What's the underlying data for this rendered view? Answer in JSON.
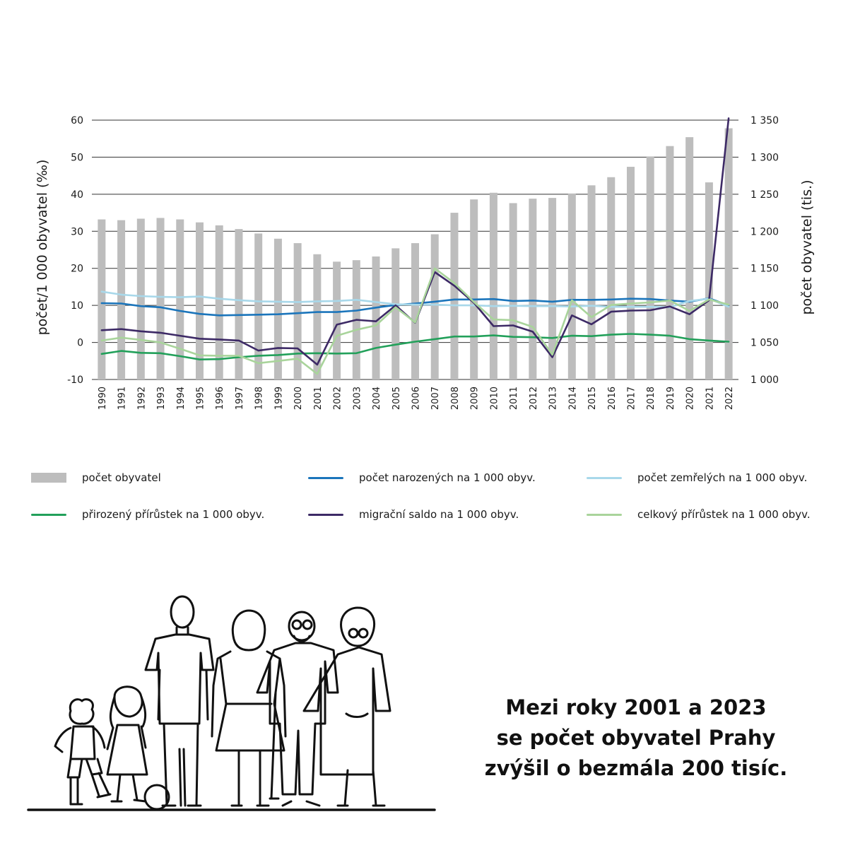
{
  "chart_data": {
    "type": "bar",
    "categories": [
      "1990",
      "1991",
      "1992",
      "1993",
      "1994",
      "1995",
      "1996",
      "1997",
      "1998",
      "1999",
      "2000",
      "2001",
      "2002",
      "2003",
      "2004",
      "2005",
      "2006",
      "2007",
      "2008",
      "2009",
      "2010",
      "2011",
      "2012",
      "2013",
      "2014",
      "2015",
      "2016",
      "2017",
      "2018",
      "2019",
      "2020",
      "2021",
      "2022"
    ],
    "y_left": {
      "label": "počet/1 000 obyvatel (‰)",
      "ticks": [
        60,
        50,
        40,
        30,
        20,
        10,
        0,
        -10
      ],
      "range": [
        -10,
        60
      ]
    },
    "y_right": {
      "label": "počet obyvatel (tis.)",
      "ticks": [
        "1 350",
        "1 300",
        "1 250",
        "1 200",
        "1 150",
        "1 100",
        "1 050",
        "1 000"
      ],
      "range": [
        1000,
        1350
      ]
    },
    "grid": "horizontal",
    "legend_position": "bottom",
    "series": [
      {
        "name": "počet obyvatel",
        "type": "bar",
        "axis": "right",
        "color": "#bdbdbd",
        "values": [
          1216,
          1215,
          1217,
          1218,
          1216,
          1212,
          1208,
          1203,
          1197,
          1190,
          1184,
          1169,
          1159,
          1161,
          1166,
          1177,
          1184,
          1196,
          1225,
          1243,
          1252,
          1238,
          1244,
          1245,
          1251,
          1262,
          1273,
          1287,
          1301,
          1315,
          1327,
          1266,
          1339
        ]
      },
      {
        "name": "počet narozených na 1 000 obyv.",
        "type": "line",
        "axis": "left",
        "color": "#1b75bb",
        "values": [
          10.6,
          10.5,
          9.8,
          9.5,
          8.5,
          7.7,
          7.3,
          7.4,
          7.5,
          7.6,
          7.9,
          8.2,
          8.2,
          8.6,
          9.4,
          10.1,
          10.5,
          11.0,
          11.6,
          11.6,
          11.7,
          11.2,
          11.3,
          11.0,
          11.5,
          11.5,
          11.6,
          11.8,
          11.7,
          11.3,
          11.0,
          11.9,
          10.0
        ]
      },
      {
        "name": "počet zemřelých na 1 000 obyv.",
        "type": "line",
        "axis": "left",
        "color": "#a8d8ea",
        "values": [
          13.7,
          12.9,
          12.5,
          12.3,
          12.2,
          12.4,
          11.8,
          11.4,
          11.1,
          11.0,
          10.9,
          11.1,
          11.2,
          11.5,
          10.9,
          10.3,
          10.2,
          10.2,
          10.0,
          10.0,
          9.8,
          9.9,
          9.8,
          9.8,
          9.7,
          9.9,
          9.6,
          9.6,
          9.6,
          9.5,
          11.2,
          11.8,
          9.6
        ]
      },
      {
        "name": "přirozený přírůstek na 1 000 obyv.",
        "type": "line",
        "axis": "left",
        "color": "#22a05a",
        "values": [
          -3.1,
          -2.3,
          -2.8,
          -2.9,
          -3.7,
          -4.6,
          -4.5,
          -4.0,
          -3.6,
          -3.4,
          -3.0,
          -2.9,
          -3.0,
          -2.9,
          -1.5,
          -0.6,
          0.2,
          0.9,
          1.6,
          1.6,
          1.9,
          1.5,
          1.4,
          1.2,
          1.8,
          1.7,
          2.1,
          2.3,
          2.1,
          1.8,
          0.9,
          0.5,
          0.2
        ]
      },
      {
        "name": "migrační saldo na 1 000 obyv.",
        "type": "line",
        "axis": "left",
        "color": "#3d2a66",
        "values": [
          3.3,
          3.6,
          3.0,
          2.6,
          1.8,
          1.0,
          0.8,
          0.5,
          -2.2,
          -1.5,
          -1.6,
          -6.0,
          4.8,
          6.1,
          5.7,
          10.0,
          5.3,
          19.0,
          15.3,
          10.7,
          4.4,
          4.6,
          2.9,
          -4.0,
          7.3,
          4.9,
          8.3,
          8.6,
          8.7,
          9.7,
          7.6,
          11.4,
          60.5
        ]
      },
      {
        "name": "celkový přírůstek na 1 000 obyv.",
        "type": "line",
        "axis": "left",
        "color": "#a9d49b",
        "values": [
          0.5,
          1.3,
          0.7,
          0.0,
          -1.7,
          -3.5,
          -3.6,
          -3.6,
          -5.6,
          -5.0,
          -4.4,
          -8.5,
          1.8,
          3.4,
          4.6,
          9.5,
          5.4,
          20.0,
          16.0,
          10.9,
          6.2,
          6.0,
          4.2,
          -3.3,
          11.4,
          6.8,
          10.1,
          10.5,
          10.8,
          11.3,
          8.5,
          11.6,
          10.2
        ]
      }
    ]
  },
  "headline": {
    "line1": "Mezi roky 2001 a 2023",
    "line2": "se počet obyvatel Prahy",
    "line3": "zvýšil o bezmála 200 tisíc."
  },
  "illustration": {
    "name": "family-illustration",
    "figures": [
      "boy",
      "girl",
      "man",
      "woman",
      "grandfather",
      "grandmother",
      "ball"
    ]
  }
}
